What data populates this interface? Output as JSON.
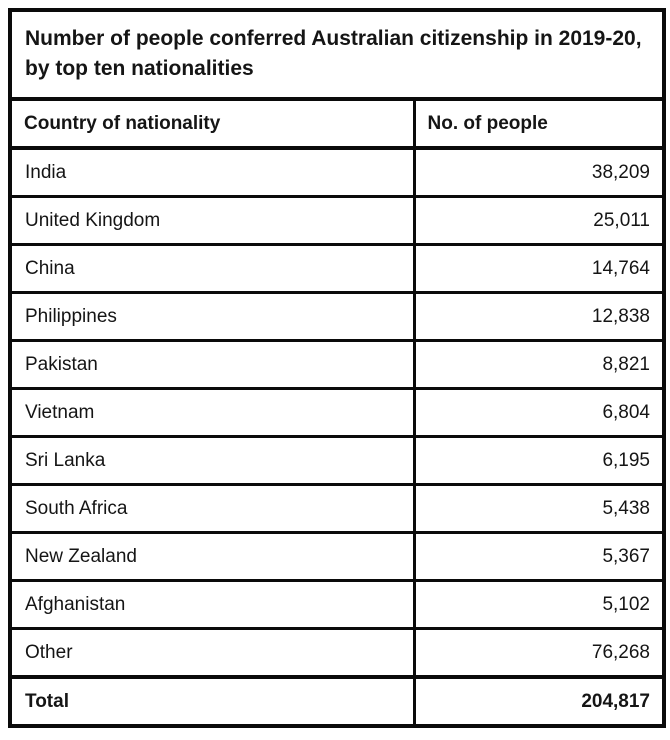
{
  "page": {
    "background": "#ffffff",
    "border_color": "#0a0a0a",
    "text_color": "#151515"
  },
  "title": "Number of people conferred Australian citizenship in 2019-20, by top ten nationalities",
  "table": {
    "columns": [
      "Country of nationality",
      "No. of people"
    ],
    "rows": [
      {
        "country": "India",
        "people": "38,209"
      },
      {
        "country": "United Kingdom",
        "people": "25,011"
      },
      {
        "country": "China",
        "people": "14,764"
      },
      {
        "country": "Philippines",
        "people": "12,838"
      },
      {
        "country": "Pakistan",
        "people": "8,821"
      },
      {
        "country": "Vietnam",
        "people": "6,804"
      },
      {
        "country": "Sri Lanka",
        "people": "6,195"
      },
      {
        "country": "South Africa",
        "people": "5,438"
      },
      {
        "country": "New Zealand",
        "people": "5,367"
      },
      {
        "country": "Afghanistan",
        "people": "5,102"
      },
      {
        "country": "Other",
        "people": "76,268"
      }
    ],
    "total": {
      "label": "Total",
      "people": "204,817"
    }
  },
  "chart_data": {
    "type": "table",
    "title": "Number of people conferred Australian citizenship in 2019-20, by top ten nationalities",
    "columns": [
      "Country of nationality",
      "No. of people"
    ],
    "categories": [
      "India",
      "United Kingdom",
      "China",
      "Philippines",
      "Pakistan",
      "Vietnam",
      "Sri Lanka",
      "South Africa",
      "New Zealand",
      "Afghanistan",
      "Other"
    ],
    "values": [
      38209,
      25011,
      14764,
      12838,
      8821,
      6804,
      6195,
      5438,
      5367,
      5102,
      76268
    ],
    "total": 204817,
    "notes": "Two-column static table; country column left-aligned, counts right-aligned; Total row bold"
  }
}
